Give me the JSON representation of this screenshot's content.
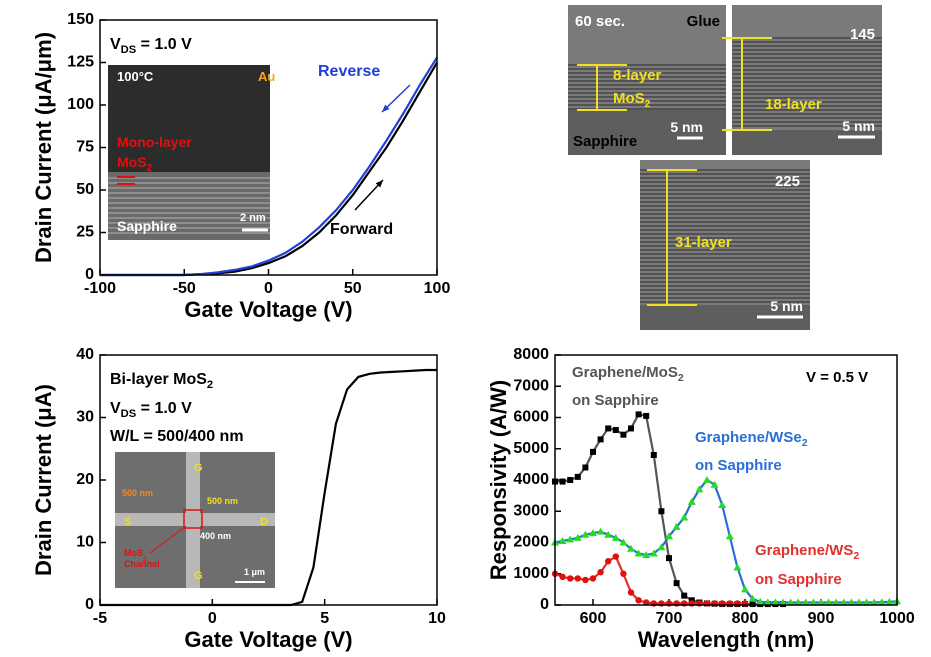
{
  "chart_data": [
    {
      "type": "line",
      "x_label": "Gate Voltage (V)",
      "y_label": "Drain Current (μA/μm)",
      "xlim": [
        -100,
        100
      ],
      "xticks": [
        -100,
        -50,
        0,
        50,
        100
      ],
      "ylim": [
        0,
        150
      ],
      "yticks": [
        0,
        25,
        50,
        75,
        100,
        125,
        150
      ],
      "x": [
        -100,
        -90,
        -80,
        -70,
        -60,
        -50,
        -40,
        -30,
        -20,
        -10,
        0,
        10,
        20,
        30,
        40,
        50,
        60,
        70,
        80,
        90,
        100
      ],
      "series": [
        {
          "color": "#000000",
          "values": [
            0,
            0,
            0,
            0,
            0,
            0,
            0.5,
            1,
            2,
            4,
            7,
            11,
            17,
            25,
            35,
            47,
            61,
            75,
            91,
            108,
            125
          ]
        },
        {
          "color": "#1f3fd6",
          "values": [
            0,
            0,
            0,
            0,
            0,
            0,
            0.5,
            1.5,
            3,
            5,
            8.5,
            13,
            19.5,
            28,
            38,
            50,
            64,
            79,
            95,
            112,
            128
          ]
        }
      ],
      "annotations": [
        {
          "text": [
            "V",
            {
              "sub": "DS"
            },
            " = 1.0 V"
          ],
          "color": "#000000"
        },
        {
          "text": [
            "Reverse"
          ],
          "color": "#1f3fd6"
        },
        {
          "text": [
            "Forward"
          ],
          "color": "#000000"
        },
        {
          "text": [
            "100°C"
          ],
          "color": "#ffffff"
        },
        {
          "text": [
            "Au"
          ],
          "color": "#f5a623"
        },
        {
          "text": [
            "Mono-layer"
          ],
          "color": "#e01010"
        },
        {
          "text": [
            "MoS",
            {
              "sub": "2"
            }
          ],
          "color": "#e01010"
        },
        {
          "text": [
            "Sapphire"
          ],
          "color": "#ffffff"
        },
        {
          "text": [
            "2 nm"
          ],
          "color": "#ffffff"
        }
      ]
    },
    {
      "type": "line",
      "x_label": "Gate Voltage (V)",
      "y_label": "Drain Current (μA)",
      "xlim": [
        -5,
        10
      ],
      "xticks": [
        -5,
        0,
        5,
        10
      ],
      "ylim": [
        0,
        40
      ],
      "yticks": [
        0,
        10,
        20,
        30,
        40
      ],
      "x": [
        -5,
        -4.5,
        -4,
        -3.5,
        -3,
        -2.5,
        -2,
        -1.5,
        -1,
        -0.5,
        0,
        0.5,
        1,
        1.5,
        2,
        2.5,
        3,
        3.5,
        4,
        4.5,
        5,
        5.5,
        6,
        6.5,
        7,
        7.5,
        8,
        8.5,
        9,
        9.5,
        10
      ],
      "series": [
        {
          "color": "#000000",
          "values": [
            0,
            0,
            0,
            0,
            0,
            0,
            0,
            0,
            0,
            0,
            0,
            0,
            0,
            0,
            0,
            0,
            0,
            0,
            0.5,
            6,
            18,
            29,
            34.5,
            36.5,
            37,
            37.2,
            37.3,
            37.4,
            37.5,
            37.6,
            37.6
          ]
        }
      ],
      "annotations": [
        {
          "text": [
            "Bi-layer MoS",
            {
              "sub": "2"
            }
          ],
          "color": "#000000"
        },
        {
          "text": [
            "V",
            {
              "sub": "DS"
            },
            " = 1.0 V"
          ],
          "color": "#000000"
        },
        {
          "text": [
            "W/L = 500/400 nm"
          ],
          "color": "#000000"
        },
        {
          "text": [
            "G"
          ],
          "color": "#f0e020"
        },
        {
          "text": [
            "G"
          ],
          "color": "#f0e020"
        },
        {
          "text": [
            "S"
          ],
          "color": "#f0e020"
        },
        {
          "text": [
            "D"
          ],
          "color": "#f0e020"
        },
        {
          "text": [
            "500 nm"
          ],
          "color": "#f08a20"
        },
        {
          "text": [
            "500 nm"
          ],
          "color": "#f0e020"
        },
        {
          "text": [
            "400 nm"
          ],
          "color": "#ffffff"
        },
        {
          "text": [
            "MoS",
            {
              "sub": "2"
            }
          ],
          "color": "#e01010"
        },
        {
          "text": [
            "Channel"
          ],
          "color": "#e01010"
        },
        {
          "text": [
            "1 μm"
          ],
          "color": "#ffffff"
        }
      ]
    },
    {
      "type": "line",
      "x_label": "Wavelength (nm)",
      "y_label": "Responsivity (A/W)",
      "xlim": [
        550,
        1000
      ],
      "xticks": [
        600,
        700,
        800,
        900,
        1000
      ],
      "ylim": [
        0,
        8000
      ],
      "yticks": [
        0,
        1000,
        2000,
        3000,
        4000,
        5000,
        6000,
        7000,
        8000
      ],
      "x": [
        550,
        560,
        570,
        580,
        590,
        600,
        610,
        620,
        630,
        640,
        650,
        660,
        670,
        680,
        690,
        700,
        710,
        720,
        730,
        740,
        750,
        760,
        770,
        780,
        790,
        800,
        810,
        820,
        830,
        840,
        850,
        860,
        870,
        880,
        890,
        900,
        910,
        920,
        930,
        940,
        950,
        960,
        970,
        980,
        990,
        1000
      ],
      "series": [
        {
          "color": "#555555",
          "marker": "square",
          "marker_color": "#000000",
          "values": [
            3950,
            3950,
            4000,
            4100,
            4400,
            4900,
            5300,
            5650,
            5600,
            5450,
            5650,
            6100,
            6050,
            4800,
            3000,
            1500,
            700,
            300,
            150,
            80,
            50,
            40,
            30,
            30,
            30,
            30,
            30,
            30,
            30,
            30,
            30,
            null,
            null,
            null,
            null,
            null,
            null,
            null,
            null,
            null,
            null,
            null,
            null,
            null,
            null,
            null
          ]
        },
        {
          "color": "#2a6fd6",
          "marker": "triangle",
          "marker_color": "#22dd22",
          "values": [
            2000,
            2050,
            2100,
            2150,
            2250,
            2300,
            2350,
            2250,
            2150,
            2000,
            1800,
            1650,
            1600,
            1650,
            1850,
            2200,
            2500,
            2800,
            3300,
            3700,
            4000,
            3850,
            3200,
            2200,
            1200,
            500,
            200,
            100,
            80,
            80,
            80,
            80,
            80,
            80,
            80,
            80,
            80,
            80,
            80,
            80,
            80,
            80,
            80,
            90,
            100,
            120
          ]
        },
        {
          "color": "#e03030",
          "marker": "circle",
          "marker_color": "#e01010",
          "values": [
            1000,
            900,
            850,
            850,
            800,
            850,
            1050,
            1400,
            1550,
            1000,
            400,
            150,
            80,
            50,
            50,
            50,
            50,
            50,
            50,
            50,
            50,
            50,
            50,
            50,
            50,
            50,
            null,
            null,
            null,
            null,
            null,
            null,
            null,
            null,
            null,
            null,
            null,
            null,
            null,
            null,
            null,
            null,
            null,
            null,
            null,
            null
          ]
        }
      ],
      "annotations": [
        {
          "text": [
            "Graphene/MoS",
            {
              "sub": "2"
            }
          ],
          "color": "#555555"
        },
        {
          "text": [
            "on Sapphire"
          ],
          "color": "#555555"
        },
        {
          "text": [
            "V = 0.5 V"
          ],
          "color": "#000000"
        },
        {
          "text": [
            "Graphene/WSe",
            {
              "sub": "2"
            }
          ],
          "color": "#2a6fd6"
        },
        {
          "text": [
            "on Sapphire"
          ],
          "color": "#2a6fd6"
        },
        {
          "text": [
            "Graphene/WS",
            {
              "sub": "2"
            }
          ],
          "color": "#e03030"
        },
        {
          "text": [
            "on Sapphire"
          ],
          "color": "#e03030"
        }
      ]
    }
  ],
  "images": [
    {
      "labels": [
        {
          "text": [
            "60 sec."
          ],
          "color": "#ffffff"
        },
        {
          "text": [
            "Glue"
          ],
          "color": "#000000"
        },
        {
          "text": [
            "8-layer"
          ],
          "color": "#f0e020"
        },
        {
          "text": [
            "MoS",
            {
              "sub": "2"
            }
          ],
          "color": "#f0e020"
        },
        {
          "text": [
            "Sapphire"
          ],
          "color": "#000000"
        },
        {
          "text": [
            "5 nm"
          ],
          "color": "#ffffff"
        }
      ]
    },
    {
      "labels": [
        {
          "text": [
            "145"
          ],
          "color": "#ffffff"
        },
        {
          "text": [
            "18-layer"
          ],
          "color": "#f0e020"
        },
        {
          "text": [
            "5 nm"
          ],
          "color": "#ffffff"
        }
      ]
    },
    {
      "labels": [
        {
          "text": [
            "225"
          ],
          "color": "#ffffff"
        },
        {
          "text": [
            "31-layer"
          ],
          "color": "#f0e020"
        },
        {
          "text": [
            "5 nm"
          ],
          "color": "#ffffff"
        }
      ]
    }
  ]
}
